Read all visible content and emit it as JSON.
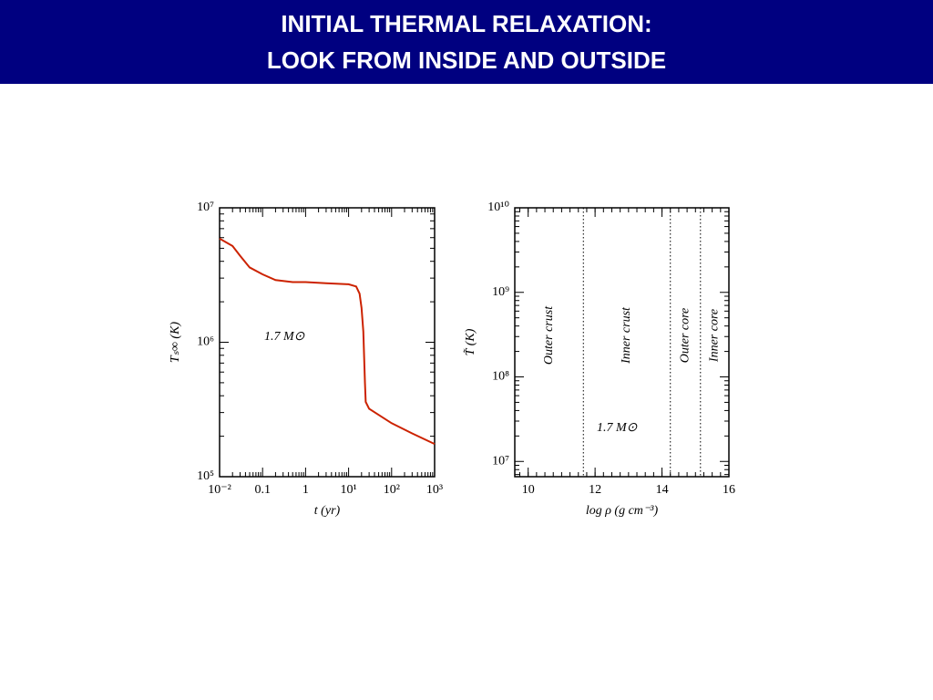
{
  "header": {
    "title": [
      "INITIAL THERMAL RELAXATION:",
      "LOOK FROM INSIDE AND OUTSIDE"
    ]
  },
  "chart_data": [
    {
      "type": "line",
      "xlog": true,
      "ylog": true,
      "xlabel": "t  (yr)",
      "ylabel": "Tₛ∞ (K)",
      "annotation": "1.7 M⊙",
      "x": [
        0.01,
        0.02,
        0.03,
        0.05,
        0.1,
        0.2,
        0.5,
        1,
        3,
        10,
        15,
        18,
        20,
        22,
        24,
        25,
        30,
        100,
        300,
        1000
      ],
      "series": [
        {
          "color": "#cc2200",
          "values": [
            5900000,
            5200000,
            4400000,
            3600000,
            3200000,
            2900000,
            2800000,
            2800000,
            2750000,
            2700000,
            2600000,
            2300000,
            1800000,
            1200000,
            500000,
            360000,
            320000,
            250000,
            210000,
            175000
          ]
        }
      ],
      "xlim": [
        0.01,
        1000
      ],
      "xticks": [
        {
          "value": 0.01,
          "label": "10⁻²"
        },
        0.1,
        1,
        {
          "value": 10,
          "label": "10¹"
        },
        {
          "value": 100,
          "label": "10²"
        },
        {
          "value": 1000,
          "label": "10³"
        }
      ],
      "ylim": [
        100000,
        10000000
      ],
      "yticks": [
        {
          "value": 100000,
          "label": "10⁵"
        },
        {
          "value": 1000000,
          "label": "10⁶"
        },
        {
          "value": 10000000,
          "label": "10⁷"
        }
      ]
    },
    {
      "type": "region",
      "xlog": false,
      "ylog": true,
      "xlabel": "log  ρ (g cm⁻³)",
      "ylabel": "T̃ (K)",
      "annotation": "1.7 M⊙",
      "boundaries": [
        11.65,
        14.25,
        15.15
      ],
      "region_labels": [
        "Outer  crust",
        "Inner  crust",
        "Outer  core",
        "Inner  core"
      ],
      "xlim": [
        9.6,
        16
      ],
      "xticks": [
        10,
        12,
        14,
        16
      ],
      "ylim": [
        6600000,
        10000000000
      ],
      "yticks": [
        {
          "value": 10000000,
          "label": "10⁷"
        },
        {
          "value": 100000000,
          "label": "10⁸"
        },
        {
          "value": 1000000000,
          "label": "10⁹"
        },
        {
          "value": 10000000000,
          "label": "10¹⁰"
        }
      ]
    }
  ]
}
